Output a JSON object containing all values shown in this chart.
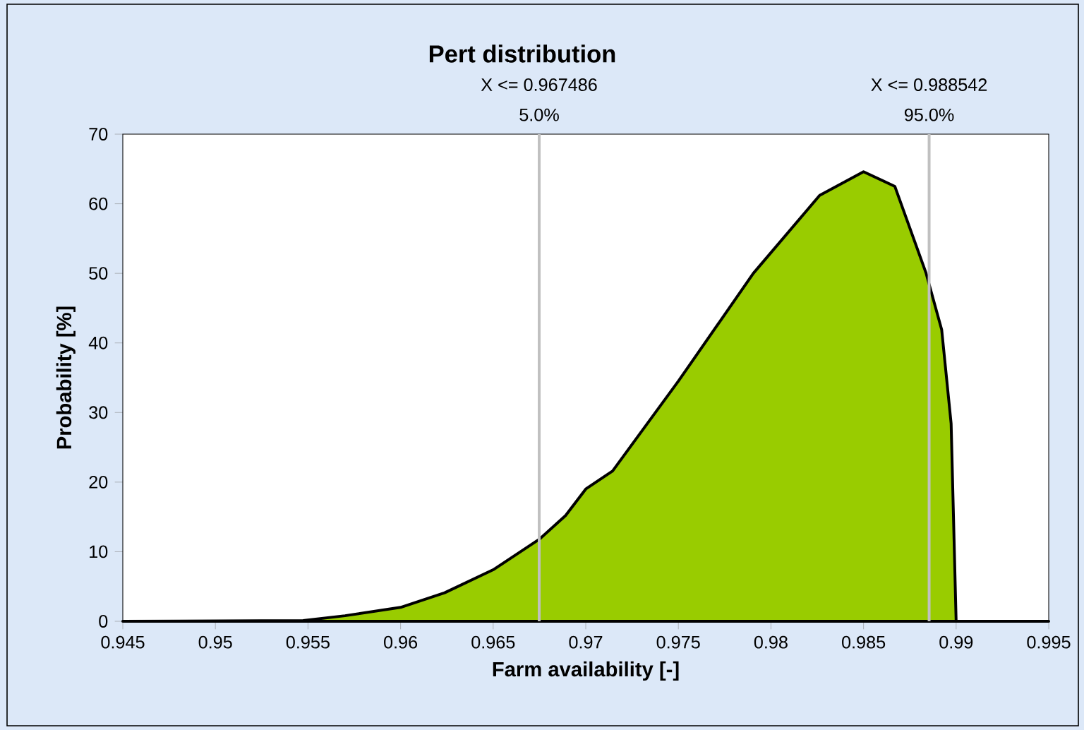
{
  "chart_data": {
    "type": "area",
    "title": "Pert distribution",
    "xlabel": "Farm availability [-]",
    "ylabel": "Probability [%]",
    "x": [
      0.945,
      0.95474,
      0.957,
      0.96,
      0.96238,
      0.965,
      0.9675,
      0.96891,
      0.97,
      0.97145,
      0.975,
      0.97905,
      0.98263,
      0.985,
      0.98669,
      0.98838,
      0.98922,
      0.98973,
      0.99,
      0.995
    ],
    "series": [
      {
        "color": "#99cc00",
        "values": [
          0,
          0.1,
          0.8,
          2.0,
          4.1,
          7.4,
          11.8,
          15.2,
          19,
          21.6,
          34.5,
          50.0,
          61.2,
          64.6,
          62.5,
          50.0,
          41.9,
          28.4,
          0,
          0
        ]
      }
    ],
    "xlim": [
      0.945,
      0.995
    ],
    "ylim": [
      0,
      70
    ],
    "xticks": [
      {
        "value": 0.945,
        "label": "0.945"
      },
      {
        "value": 0.95,
        "label": "0.95"
      },
      {
        "value": 0.955,
        "label": "0.955"
      },
      {
        "value": 0.96,
        "label": "0.96"
      },
      {
        "value": 0.965,
        "label": "0.965"
      },
      {
        "value": 0.97,
        "label": "0.97"
      },
      {
        "value": 0.975,
        "label": "0.975"
      },
      {
        "value": 0.98,
        "label": "0.98"
      },
      {
        "value": 0.985,
        "label": "0.985"
      },
      {
        "value": 0.99,
        "label": "0.99"
      },
      {
        "value": 0.995,
        "label": "0.995"
      }
    ],
    "yticks": [
      0,
      10,
      20,
      30,
      40,
      50,
      60,
      70
    ],
    "ref_lines": [
      {
        "axis": "x",
        "value": 0.967486,
        "label": "X <= 0.967486",
        "color": "#c0c0c0"
      },
      {
        "axis": "x",
        "value": 0.988542,
        "label": "X <= 0.988542",
        "color": "#c0c0c0"
      }
    ],
    "annotations": [
      {
        "text": "5.0%",
        "x": 0.967486,
        "y": 70
      },
      {
        "text": "95.0%",
        "x": 0.988542,
        "y": 70
      }
    ],
    "grid": false
  }
}
